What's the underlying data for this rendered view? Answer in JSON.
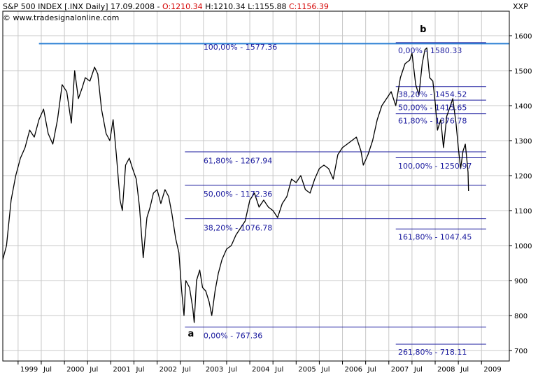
{
  "header": {
    "symbol": "S&P 500 INDEX [.INX  Daily]",
    "date": "17.09.2008",
    "open": "O:1210.34",
    "high": "H:1210.34",
    "low": "L:1155.88",
    "close": "C:1156.39",
    "copyright": "© www.tradesignalonline.com",
    "axis_symbol": "XXP"
  },
  "chart_data": {
    "type": "line",
    "title": "S&P 500 INDEX [.INX  Daily]",
    "xlabel": "",
    "ylabel": "",
    "ylim": [
      670,
      1670
    ],
    "xlim": [
      1998.67,
      2009.6
    ],
    "grid": true,
    "y_ticks": [
      700,
      800,
      900,
      1000,
      1100,
      1200,
      1300,
      1400,
      1500,
      1600
    ],
    "x_ticks": [
      {
        "t": 1999.0,
        "label": "1999"
      },
      {
        "t": 1999.5,
        "label": "Jul"
      },
      {
        "t": 2000.0,
        "label": "2000"
      },
      {
        "t": 2000.5,
        "label": "Jul"
      },
      {
        "t": 2001.0,
        "label": "2001"
      },
      {
        "t": 2001.5,
        "label": "Jul"
      },
      {
        "t": 2002.0,
        "label": "2002"
      },
      {
        "t": 2002.5,
        "label": "Jul"
      },
      {
        "t": 2003.0,
        "label": "2003"
      },
      {
        "t": 2003.5,
        "label": "Jul"
      },
      {
        "t": 2004.0,
        "label": "2004"
      },
      {
        "t": 2004.5,
        "label": "Jul"
      },
      {
        "t": 2005.0,
        "label": "2005"
      },
      {
        "t": 2005.5,
        "label": "Jul"
      },
      {
        "t": 2006.0,
        "label": "2006"
      },
      {
        "t": 2006.5,
        "label": "Jul"
      },
      {
        "t": 2007.0,
        "label": "2007"
      },
      {
        "t": 2007.5,
        "label": "Jul"
      },
      {
        "t": 2008.0,
        "label": "2008"
      },
      {
        "t": 2008.5,
        "label": "Jul"
      },
      {
        "t": 2009.0,
        "label": "2009"
      }
    ],
    "series": [
      {
        "color": "#000000",
        "points": [
          [
            1998.67,
            960
          ],
          [
            1998.75,
            1000
          ],
          [
            1998.85,
            1130
          ],
          [
            1998.95,
            1200
          ],
          [
            1999.05,
            1250
          ],
          [
            1999.15,
            1280
          ],
          [
            1999.25,
            1330
          ],
          [
            1999.35,
            1310
          ],
          [
            1999.45,
            1360
          ],
          [
            1999.55,
            1390
          ],
          [
            1999.65,
            1320
          ],
          [
            1999.75,
            1290
          ],
          [
            1999.85,
            1360
          ],
          [
            1999.95,
            1460
          ],
          [
            2000.05,
            1440
          ],
          [
            2000.15,
            1350
          ],
          [
            2000.22,
            1500
          ],
          [
            2000.3,
            1420
          ],
          [
            2000.38,
            1450
          ],
          [
            2000.45,
            1480
          ],
          [
            2000.55,
            1470
          ],
          [
            2000.65,
            1510
          ],
          [
            2000.72,
            1490
          ],
          [
            2000.8,
            1390
          ],
          [
            2000.9,
            1320
          ],
          [
            2000.98,
            1300
          ],
          [
            2001.05,
            1360
          ],
          [
            2001.12,
            1260
          ],
          [
            2001.2,
            1130
          ],
          [
            2001.25,
            1100
          ],
          [
            2001.32,
            1230
          ],
          [
            2001.4,
            1250
          ],
          [
            2001.47,
            1220
          ],
          [
            2001.55,
            1190
          ],
          [
            2001.62,
            1110
          ],
          [
            2001.7,
            965
          ],
          [
            2001.78,
            1080
          ],
          [
            2001.85,
            1110
          ],
          [
            2001.92,
            1150
          ],
          [
            2002.0,
            1160
          ],
          [
            2002.08,
            1120
          ],
          [
            2002.17,
            1160
          ],
          [
            2002.25,
            1140
          ],
          [
            2002.32,
            1090
          ],
          [
            2002.4,
            1020
          ],
          [
            2002.47,
            980
          ],
          [
            2002.53,
            870
          ],
          [
            2002.58,
            800
          ],
          [
            2002.62,
            900
          ],
          [
            2002.7,
            880
          ],
          [
            2002.77,
            820
          ],
          [
            2002.8,
            780
          ],
          [
            2002.85,
            900
          ],
          [
            2002.92,
            930
          ],
          [
            2002.98,
            880
          ],
          [
            2003.05,
            870
          ],
          [
            2003.12,
            840
          ],
          [
            2003.18,
            800
          ],
          [
            2003.25,
            870
          ],
          [
            2003.32,
            920
          ],
          [
            2003.4,
            960
          ],
          [
            2003.5,
            990
          ],
          [
            2003.6,
            1000
          ],
          [
            2003.7,
            1030
          ],
          [
            2003.8,
            1050
          ],
          [
            2003.9,
            1070
          ],
          [
            2004.0,
            1130
          ],
          [
            2004.1,
            1150
          ],
          [
            2004.2,
            1110
          ],
          [
            2004.3,
            1130
          ],
          [
            2004.4,
            1110
          ],
          [
            2004.5,
            1100
          ],
          [
            2004.6,
            1080
          ],
          [
            2004.7,
            1120
          ],
          [
            2004.8,
            1140
          ],
          [
            2004.9,
            1190
          ],
          [
            2005.0,
            1180
          ],
          [
            2005.1,
            1200
          ],
          [
            2005.2,
            1160
          ],
          [
            2005.3,
            1150
          ],
          [
            2005.4,
            1190
          ],
          [
            2005.5,
            1220
          ],
          [
            2005.6,
            1230
          ],
          [
            2005.7,
            1220
          ],
          [
            2005.8,
            1190
          ],
          [
            2005.9,
            1260
          ],
          [
            2006.0,
            1280
          ],
          [
            2006.1,
            1290
          ],
          [
            2006.2,
            1300
          ],
          [
            2006.3,
            1310
          ],
          [
            2006.4,
            1270
          ],
          [
            2006.45,
            1230
          ],
          [
            2006.55,
            1260
          ],
          [
            2006.65,
            1300
          ],
          [
            2006.75,
            1360
          ],
          [
            2006.85,
            1400
          ],
          [
            2006.95,
            1420
          ],
          [
            2007.05,
            1440
          ],
          [
            2007.15,
            1400
          ],
          [
            2007.25,
            1480
          ],
          [
            2007.35,
            1520
          ],
          [
            2007.45,
            1530
          ],
          [
            2007.5,
            1550
          ],
          [
            2007.58,
            1460
          ],
          [
            2007.65,
            1430
          ],
          [
            2007.72,
            1520
          ],
          [
            2007.78,
            1560
          ],
          [
            2007.82,
            1565
          ],
          [
            2007.88,
            1480
          ],
          [
            2007.95,
            1470
          ],
          [
            2008.0,
            1410
          ],
          [
            2008.05,
            1330
          ],
          [
            2008.12,
            1360
          ],
          [
            2008.18,
            1280
          ],
          [
            2008.25,
            1370
          ],
          [
            2008.33,
            1400
          ],
          [
            2008.38,
            1420
          ],
          [
            2008.45,
            1350
          ],
          [
            2008.5,
            1280
          ],
          [
            2008.55,
            1220
          ],
          [
            2008.6,
            1270
          ],
          [
            2008.65,
            1290
          ],
          [
            2008.68,
            1250
          ],
          [
            2008.71,
            1210
          ],
          [
            2008.72,
            1156
          ]
        ]
      }
    ],
    "fib_levels": [
      {
        "price": 1577.36,
        "label": "100,00% - 1577.36",
        "x_start": 1999.45,
        "x_end": 2009.6,
        "color": "#2a7fd4",
        "thick": true,
        "label_x": 2003.0,
        "label_price": 1560
      },
      {
        "price": 1267.94,
        "label": "61,80% - 1267.94",
        "x_start": 2002.6,
        "x_end": 2009.1,
        "color": "#1a1a9e",
        "thick": false,
        "label_x": 2003.0,
        "label_price": 1235
      },
      {
        "price": 1172.36,
        "label": "50,00% - 1172.36",
        "x_start": 2002.6,
        "x_end": 2009.1,
        "color": "#1a1a9e",
        "thick": false,
        "label_x": 2003.0,
        "label_price": 1140
      },
      {
        "price": 1076.78,
        "label": "38,20% - 1076.78",
        "x_start": 2002.6,
        "x_end": 2009.1,
        "color": "#1a1a9e",
        "thick": false,
        "label_x": 2003.0,
        "label_price": 1043
      },
      {
        "price": 767.36,
        "label": "0,00% - 767.36",
        "x_start": 2002.6,
        "x_end": 2009.1,
        "color": "#1a1a9e",
        "thick": false,
        "label_x": 2003.0,
        "label_price": 735
      },
      {
        "price": 1580.33,
        "label": "0,00% - 1580.33",
        "x_start": 2007.15,
        "x_end": 2009.1,
        "color": "#1a1a9e",
        "thick": false,
        "label_x": 2007.2,
        "label_price": 1550
      },
      {
        "price": 1454.52,
        "label": "38,20% - 1454.52",
        "x_start": 2007.15,
        "x_end": 2009.1,
        "color": "#1a1a9e",
        "thick": false,
        "label_x": 2007.2,
        "label_price": 1425
      },
      {
        "price": 1415.65,
        "label": "50,00% - 1415.65",
        "x_start": 2007.15,
        "x_end": 2009.1,
        "color": "#1a1a9e",
        "thick": false,
        "label_x": 2007.2,
        "label_price": 1387
      },
      {
        "price": 1376.78,
        "label": "61,80% - 1376.78",
        "x_start": 2007.15,
        "x_end": 2009.1,
        "color": "#1a1a9e",
        "thick": false,
        "label_x": 2007.2,
        "label_price": 1349
      },
      {
        "price": 1250.97,
        "label": "100,00% - 1250.97",
        "x_start": 2007.15,
        "x_end": 2009.1,
        "color": "#1a1a9e",
        "thick": false,
        "label_x": 2007.2,
        "label_price": 1220
      },
      {
        "price": 1047.45,
        "label": "161,80% - 1047.45",
        "x_start": 2007.15,
        "x_end": 2009.1,
        "color": "#1a1a9e",
        "thick": false,
        "label_x": 2007.2,
        "label_price": 1017
      },
      {
        "price": 718.11,
        "label": "261,80% - 718.11",
        "x_start": 2007.15,
        "x_end": 2009.1,
        "color": "#1a1a9e",
        "thick": false,
        "label_x": 2007.2,
        "label_price": 688
      }
    ],
    "annotations": [
      {
        "label": "a",
        "t": 2002.73,
        "price": 740
      },
      {
        "label": "b",
        "t": 2007.74,
        "price": 1610
      }
    ]
  }
}
